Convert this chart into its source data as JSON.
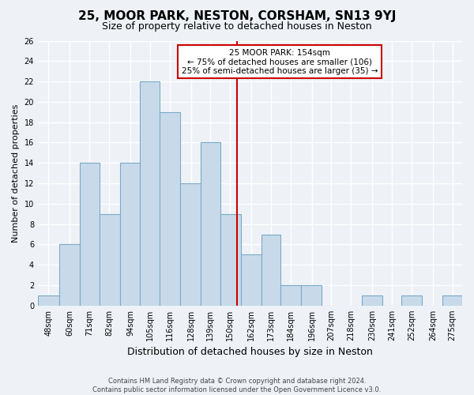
{
  "title": "25, MOOR PARK, NESTON, CORSHAM, SN13 9YJ",
  "subtitle": "Size of property relative to detached houses in Neston",
  "xlabel": "Distribution of detached houses by size in Neston",
  "ylabel": "Number of detached properties",
  "bar_labels": [
    "48sqm",
    "60sqm",
    "71sqm",
    "82sqm",
    "94sqm",
    "105sqm",
    "116sqm",
    "128sqm",
    "139sqm",
    "150sqm",
    "162sqm",
    "173sqm",
    "184sqm",
    "196sqm",
    "207sqm",
    "218sqm",
    "230sqm",
    "241sqm",
    "252sqm",
    "264sqm",
    "275sqm"
  ],
  "bar_centers": [
    48,
    60,
    71,
    82,
    94,
    105,
    116,
    128,
    139,
    150,
    162,
    173,
    184,
    196,
    207,
    218,
    230,
    241,
    252,
    264,
    275
  ],
  "bar_values": [
    1,
    6,
    14,
    9,
    14,
    22,
    19,
    12,
    16,
    9,
    5,
    7,
    2,
    2,
    0,
    0,
    1,
    0,
    1,
    0,
    1
  ],
  "bar_color": "#c8daea",
  "bar_edge_color": "#7aaac8",
  "property_line_x": 154,
  "property_line_color": "#cc0000",
  "ylim_max": 26,
  "yticks": [
    0,
    2,
    4,
    6,
    8,
    10,
    12,
    14,
    16,
    18,
    20,
    22,
    24,
    26
  ],
  "annotation_title": "25 MOOR PARK: 154sqm",
  "annotation_line1": "← 75% of detached houses are smaller (106)",
  "annotation_line2": "25% of semi-detached houses are larger (35) →",
  "annotation_box_color": "#ffffff",
  "annotation_box_edge": "#cc0000",
  "footer_line1": "Contains HM Land Registry data © Crown copyright and database right 2024.",
  "footer_line2": "Contains public sector information licensed under the Open Government Licence v3.0.",
  "background_color": "#eef2f7",
  "grid_color": "#ffffff",
  "grid_lw": 1.0,
  "title_fontsize": 11,
  "subtitle_fontsize": 9,
  "ylabel_fontsize": 8,
  "xlabel_fontsize": 9,
  "tick_fontsize": 7,
  "footer_fontsize": 6,
  "annot_fontsize": 7.5
}
